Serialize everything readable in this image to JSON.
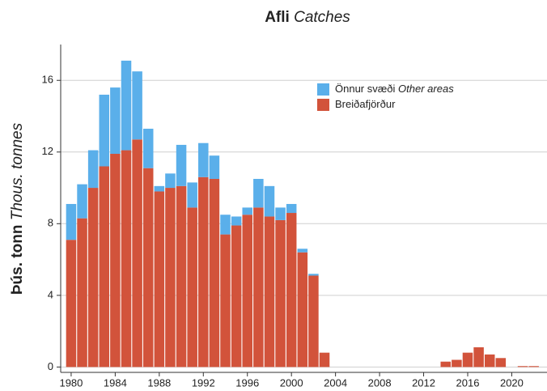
{
  "chart_data": {
    "type": "bar",
    "stacked": true,
    "title": {
      "is": "Afli",
      "en": "Catches"
    },
    "ylabel": {
      "is": "Þús. tonn",
      "en": "Thous. tonnes"
    },
    "x": [
      1980,
      1981,
      1982,
      1983,
      1984,
      1985,
      1986,
      1987,
      1988,
      1989,
      1990,
      1991,
      1992,
      1993,
      1994,
      1995,
      1996,
      1997,
      1998,
      1999,
      2000,
      2001,
      2002,
      2003,
      2004,
      2005,
      2006,
      2007,
      2008,
      2009,
      2010,
      2011,
      2012,
      2013,
      2014,
      2015,
      2016,
      2017,
      2018,
      2019,
      2020,
      2021,
      2022
    ],
    "series": [
      {
        "name": "Breiðafjörður",
        "color": "#d2533b",
        "values": [
          7.1,
          8.3,
          10.0,
          11.2,
          11.9,
          12.1,
          12.7,
          11.1,
          9.8,
          10.0,
          10.1,
          8.9,
          10.6,
          10.5,
          7.4,
          7.9,
          8.5,
          8.9,
          8.4,
          8.2,
          8.6,
          6.4,
          5.1,
          0.8,
          0,
          0,
          0,
          0,
          0,
          0,
          0,
          0,
          0,
          0,
          0.3,
          0.4,
          0.8,
          1.1,
          0.7,
          0.5,
          0,
          0.05,
          0.05
        ]
      },
      {
        "name": "Önnur svæði",
        "name_en": "Other areas",
        "color": "#5aafea",
        "values": [
          2.0,
          1.9,
          2.1,
          4.0,
          3.7,
          5.0,
          3.8,
          2.2,
          0.3,
          0.8,
          2.3,
          1.4,
          1.9,
          1.3,
          1.1,
          0.5,
          0.4,
          1.6,
          1.7,
          0.7,
          0.5,
          0.2,
          0.1,
          0,
          0,
          0,
          0,
          0,
          0,
          0,
          0,
          0,
          0,
          0,
          0,
          0,
          0,
          0,
          0,
          0,
          0,
          0,
          0
        ]
      }
    ],
    "xlim": [
      1979.05,
      2023.2
    ],
    "xticks": [
      1980,
      1984,
      1988,
      1992,
      1996,
      2000,
      2004,
      2008,
      2012,
      2016,
      2020
    ],
    "ylim": [
      -0.3,
      18
    ],
    "yticks": [
      0,
      4,
      8,
      12,
      16
    ],
    "grid": true,
    "legend": "top-right"
  }
}
